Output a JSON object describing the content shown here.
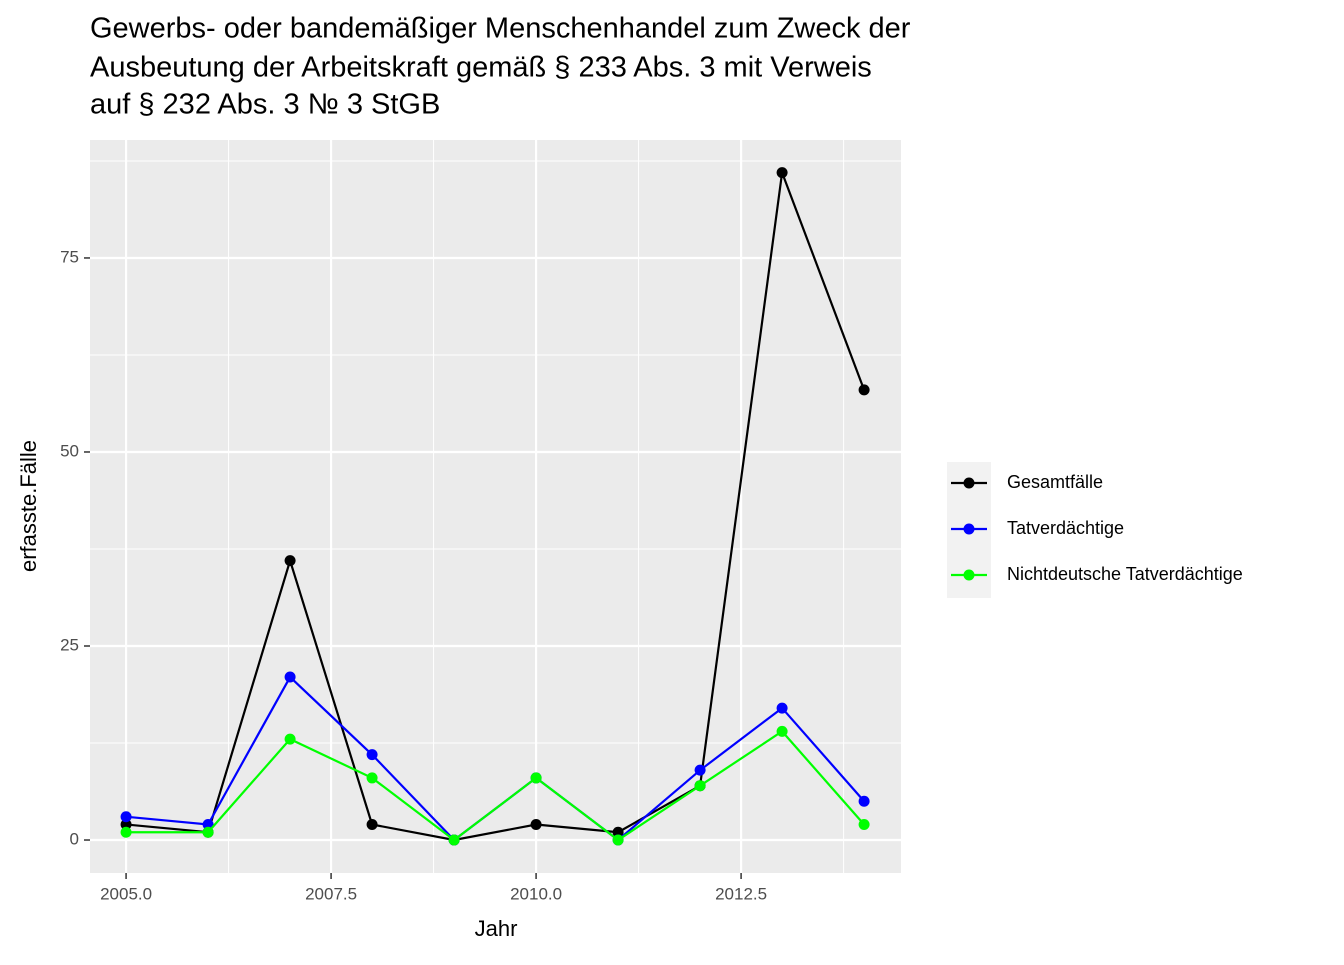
{
  "chart_data": {
    "type": "line",
    "title": [
      "Gewerbs- oder bandemäßiger Menschenhandel zum Zweck der",
      "Ausbeutung der Arbeitskraft gemäß § 233 Abs. 3 mit Verweis",
      "auf § 232 Abs. 3 № 3 StGB"
    ],
    "x_label": "Jahr",
    "y_label": "erfasste.Fälle",
    "x": [
      2005,
      2006,
      2007,
      2008,
      2009,
      2010,
      2011,
      2012,
      2013,
      2014
    ],
    "series": [
      {
        "name": "Gesamtfälle",
        "color": "#000000",
        "values": [
          2,
          1,
          36,
          2,
          0,
          2,
          1,
          7,
          86,
          58
        ]
      },
      {
        "name": "Tatverdächtige",
        "color": "#0000ff",
        "values": [
          3,
          2,
          21,
          11,
          0,
          8,
          0,
          9,
          17,
          5
        ]
      },
      {
        "name": "Nichtdeutsche Tatverdächtige",
        "color": "#00ff00",
        "values": [
          1,
          1,
          13,
          8,
          0,
          8,
          0,
          7,
          14,
          2
        ]
      }
    ],
    "xlim": [
      2004.56,
      2014.45
    ],
    "xticks": [
      {
        "value": 2005,
        "label": "2005.0"
      },
      2007.5,
      {
        "value": 2010,
        "label": "2010.0"
      },
      2012.5
    ],
    "ylim": [
      -4.25,
      90.2
    ],
    "yticks": [
      0,
      25,
      50,
      75
    ],
    "grid": true,
    "legend": "right"
  }
}
